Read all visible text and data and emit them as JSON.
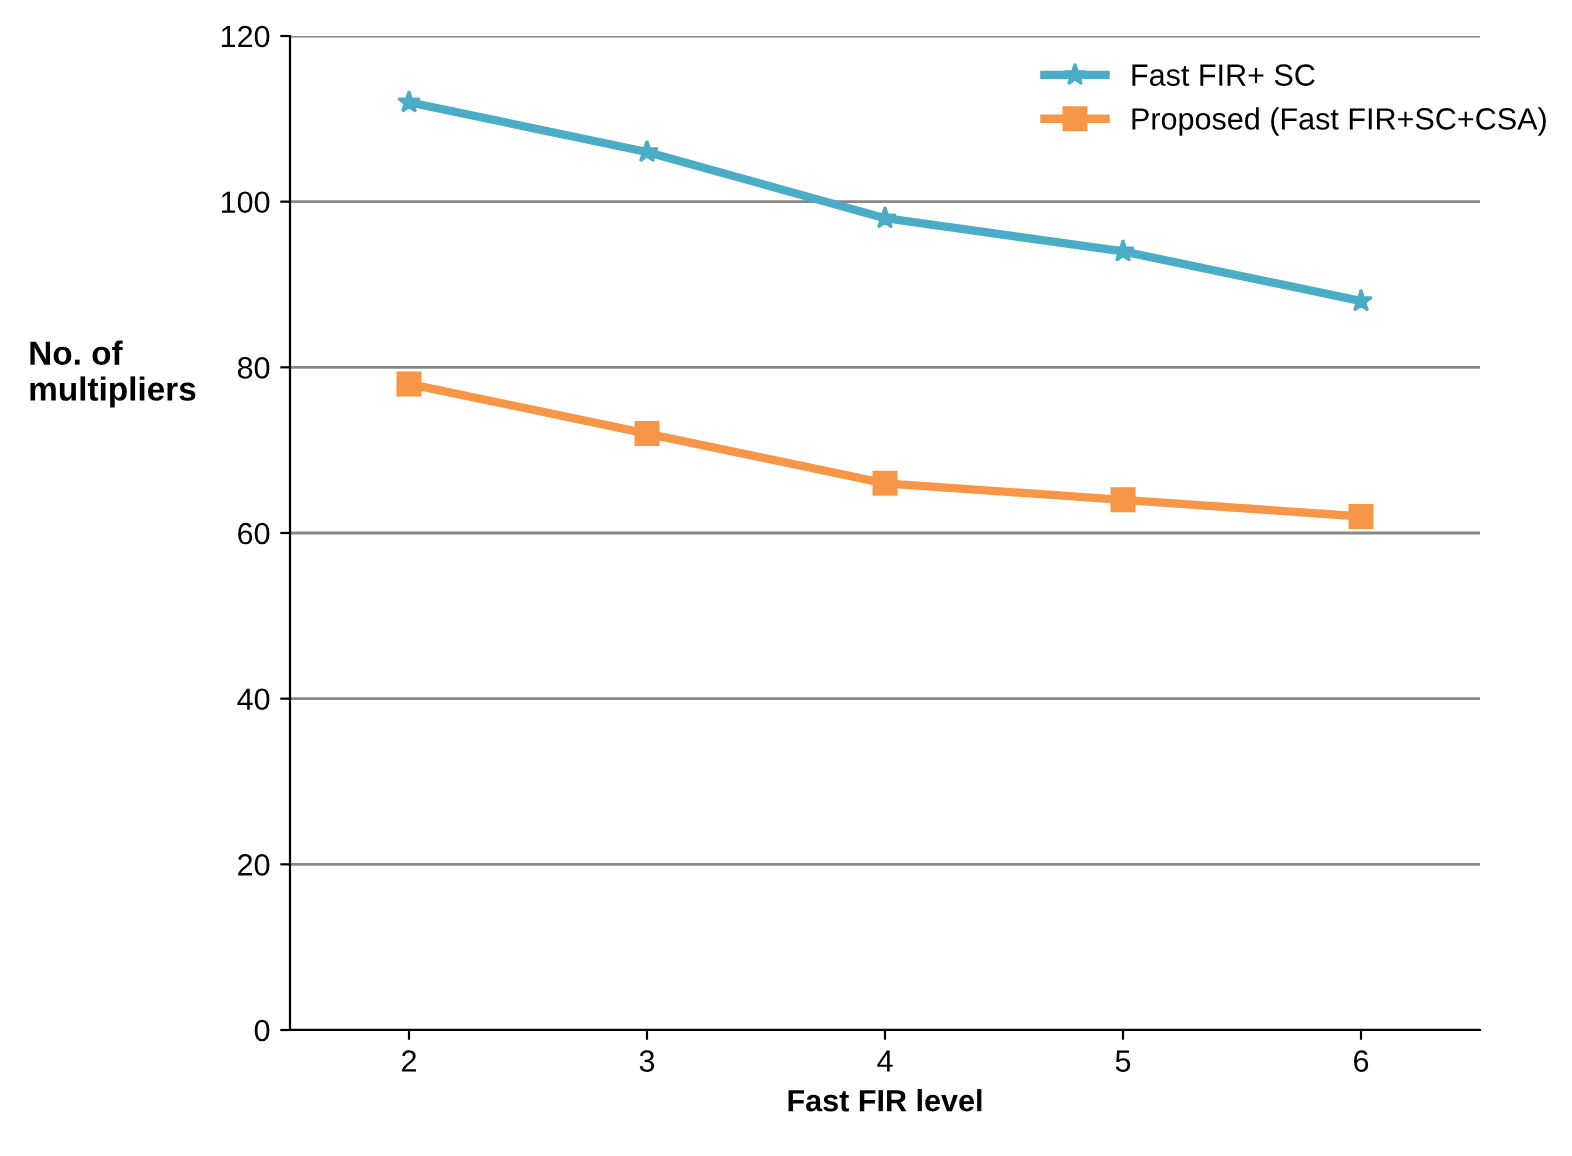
{
  "chart_data": {
    "type": "line",
    "xlabel": "Fast FIR level",
    "ylabel": "No. of\nmultipliers",
    "categories": [
      "2",
      "3",
      "4",
      "5",
      "6"
    ],
    "series": [
      {
        "name": "Fast FIR+ SC",
        "color": "#4bacc6",
        "marker": "star",
        "values": [
          112,
          106,
          98,
          94,
          88
        ]
      },
      {
        "name": "Proposed (Fast FIR+SC+CSA)",
        "color": "#f79646",
        "marker": "square",
        "values": [
          78,
          72,
          66,
          64,
          62
        ]
      }
    ],
    "ylim": [
      0,
      120
    ],
    "yticks": [
      0,
      20,
      40,
      60,
      80,
      100,
      120
    ],
    "grid": "y",
    "legend": "top right",
    "line_style": "solid"
  }
}
